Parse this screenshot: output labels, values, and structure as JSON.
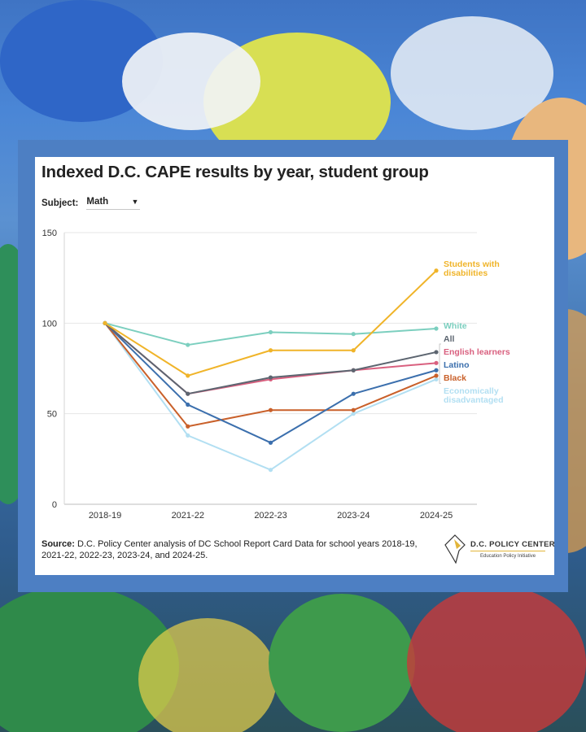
{
  "page": {
    "title": "Indexed D.C. CAPE results by year, student group",
    "subject_label": "Subject:",
    "subject_value": "Math",
    "source_label": "Source:",
    "source_text": "D.C. Policy Center analysis of DC School Report Card Data for school years 2018-19, 2021-22, 2022-23, 2023-24, and 2024-25.",
    "logo_name": "D.C. POLICY CENTER",
    "logo_sub": "Education Policy Initiative"
  },
  "chart_data": {
    "type": "line",
    "title": "Indexed D.C. CAPE results by year, student group",
    "x": [
      "2018-19",
      "2021-22",
      "2022-23",
      "2023-24",
      "2024-25"
    ],
    "ylim": [
      0,
      150
    ],
    "yticks": [
      0,
      50,
      100,
      150
    ],
    "grid": true,
    "legend": "direct labels at line ends",
    "series": [
      {
        "name": "Students with disabilities",
        "color": "#f0b429",
        "values": [
          100,
          71,
          85,
          85,
          129
        ]
      },
      {
        "name": "White",
        "color": "#7ccfbf",
        "values": [
          100,
          88,
          95,
          94,
          97
        ]
      },
      {
        "name": "All",
        "color": "#5c6570",
        "values": [
          100,
          61,
          70,
          74,
          84
        ]
      },
      {
        "name": "English learners",
        "color": "#d9607f",
        "values": [
          100,
          61,
          69,
          74,
          78
        ]
      },
      {
        "name": "Latino",
        "color": "#3b6fad",
        "values": [
          100,
          55,
          34,
          61,
          74
        ]
      },
      {
        "name": "Black",
        "color": "#c9602a",
        "values": [
          100,
          43,
          52,
          52,
          71
        ]
      },
      {
        "name": "Economically disadvantaged",
        "color": "#b2dff2",
        "values": [
          100,
          38,
          19,
          50,
          69
        ]
      }
    ],
    "label_lines": {
      "Students with disabilities": [
        "Students with",
        "disabilities"
      ],
      "White": [
        "White"
      ],
      "All": [
        "All"
      ],
      "English learners": [
        "English learners"
      ],
      "Latino": [
        "Latino"
      ],
      "Black": [
        "Black"
      ],
      "Economically disadvantaged": [
        "Economically",
        "disadvantaged"
      ]
    }
  }
}
